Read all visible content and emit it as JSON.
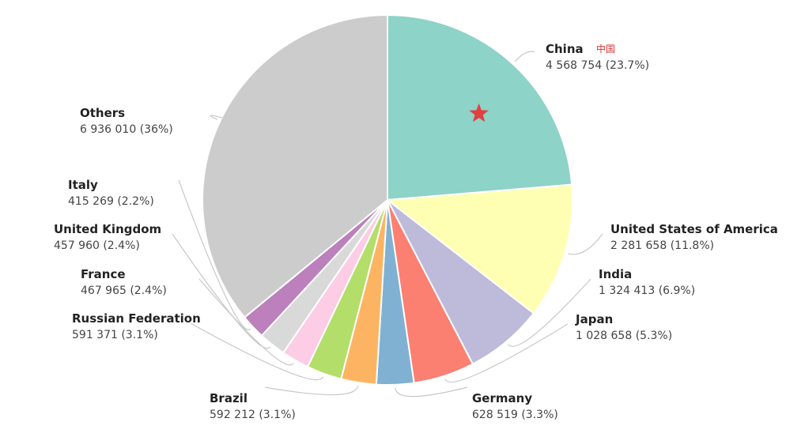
{
  "chart_data": {
    "type": "pie",
    "slices": [
      {
        "label": "China",
        "value": 4568754,
        "value_text": "4 568 754 (23.7%)",
        "color": "#8dd3c7",
        "note": "中国"
      },
      {
        "label": "United States of America",
        "value": 2281658,
        "value_text": "2 281 658 (11.8%)",
        "color": "#ffffb3"
      },
      {
        "label": "India",
        "value": 1324413,
        "value_text": "1 324 413 (6.9%)",
        "color": "#bebada"
      },
      {
        "label": "Japan",
        "value": 1028658,
        "value_text": "1 028 658 (5.3%)",
        "color": "#fb8072"
      },
      {
        "label": "Germany",
        "value": 628519,
        "value_text": "628 519 (3.3%)",
        "color": "#80b1d3"
      },
      {
        "label": "Brazil",
        "value": 592212,
        "value_text": "592 212 (3.1%)",
        "color": "#fdb462"
      },
      {
        "label": "Russian Federation",
        "value": 591371,
        "value_text": "591 371 (3.1%)",
        "color": "#b3de69"
      },
      {
        "label": "France",
        "value": 467965,
        "value_text": "467 965 (2.4%)",
        "color": "#fccde5"
      },
      {
        "label": "United Kingdom",
        "value": 457960,
        "value_text": "457 960 (2.4%)",
        "color": "#d9d9d9"
      },
      {
        "label": "Italy",
        "value": 415269,
        "value_text": "415 269 (2.2%)",
        "color": "#bc80bd"
      },
      {
        "label": "Others",
        "value": 6936010,
        "value_text": "6 936 010 (36%)",
        "color": "#cccccc"
      }
    ],
    "marker": {
      "type": "star",
      "color": "#e04040",
      "slice": "China"
    }
  }
}
